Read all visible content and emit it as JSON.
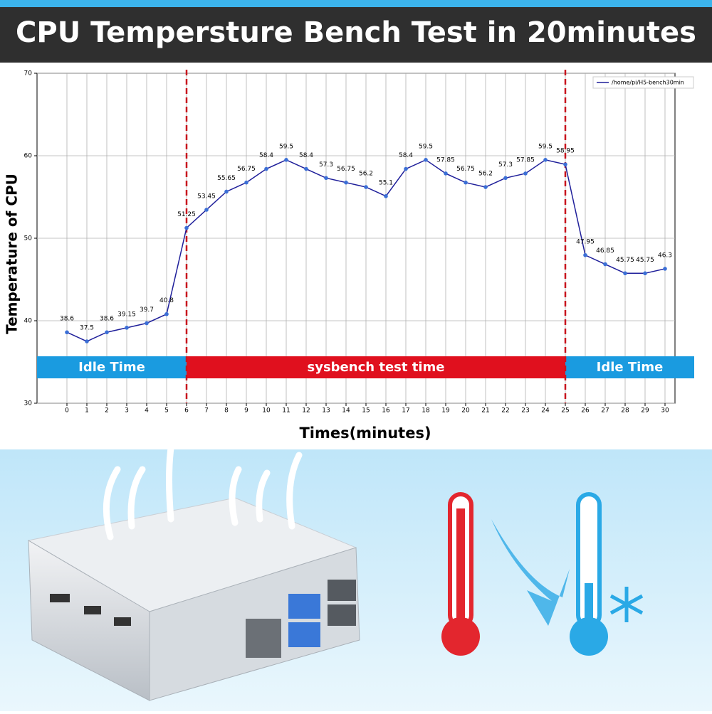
{
  "chart_data": {
    "type": "line",
    "title": "CPU Tempersture Bench Test in 20minutes",
    "xlabel": "Times(minutes)",
    "ylabel": "Temperature of CPU",
    "x": [
      0,
      1,
      2,
      3,
      4,
      5,
      6,
      7,
      8,
      9,
      10,
      11,
      12,
      13,
      14,
      15,
      16,
      17,
      18,
      19,
      20,
      21,
      22,
      23,
      24,
      25,
      26,
      27,
      28,
      29,
      30
    ],
    "series": [
      {
        "name": "/home/pi/H5-bench30min",
        "color": "#1f1f9a",
        "values": [
          38.6,
          37.5,
          38.6,
          39.15,
          39.7,
          40.8,
          51.25,
          53.45,
          55.65,
          56.75,
          58.4,
          59.5,
          58.4,
          57.3,
          56.75,
          56.2,
          55.1,
          58.4,
          59.5,
          57.85,
          56.75,
          56.2,
          57.3,
          57.85,
          59.5,
          58.95,
          47.95,
          46.85,
          45.75,
          45.75,
          46.3
        ]
      }
    ],
    "xlim": [
      -1.5,
      30.5
    ],
    "xticks": [
      0,
      1,
      2,
      3,
      4,
      5,
      6,
      7,
      8,
      9,
      10,
      11,
      12,
      13,
      14,
      15,
      16,
      17,
      18,
      19,
      20,
      21,
      22,
      23,
      24,
      25,
      26,
      27,
      28,
      29,
      30
    ],
    "ylim": [
      30,
      70
    ],
    "yticks": [
      30,
      40,
      50,
      60,
      70
    ],
    "grid": true,
    "legend": "upper right",
    "vlines": [
      6,
      25
    ],
    "annotations": [
      {
        "text": "Idle Time",
        "color": "#1a9be0"
      },
      {
        "text": "sysbench test time",
        "color": "#e0101e"
      },
      {
        "text": "Idle Time",
        "color": "#1a9be0"
      }
    ]
  }
}
